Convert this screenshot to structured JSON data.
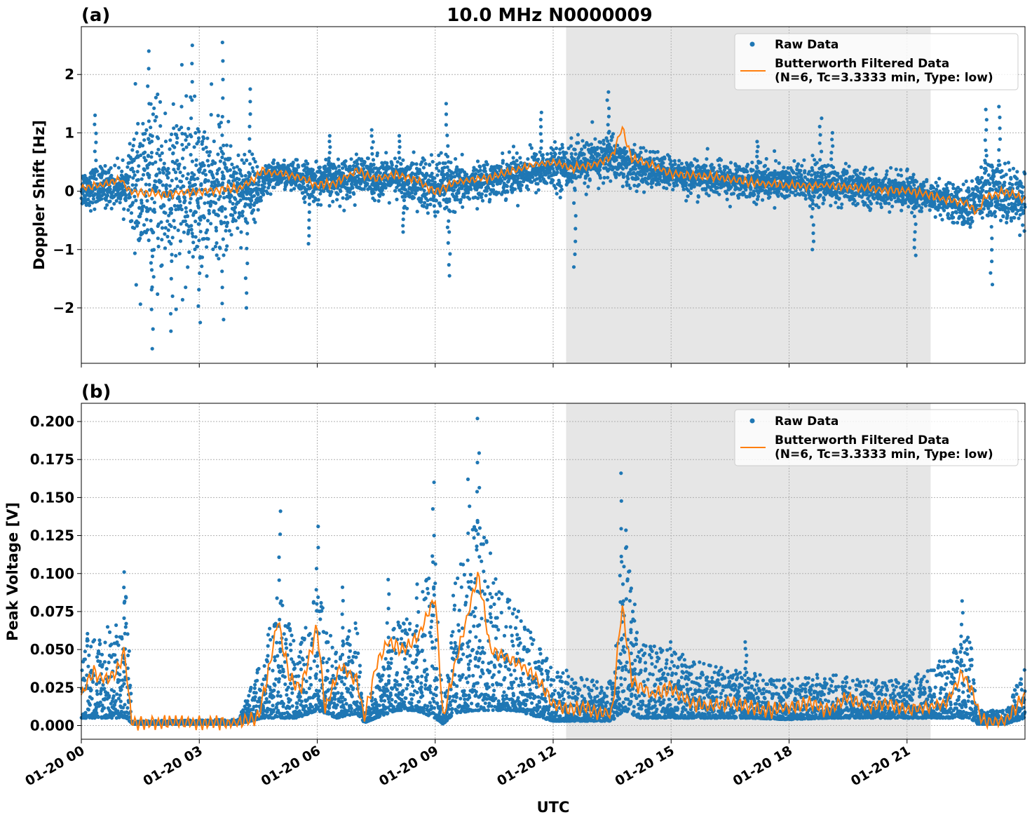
{
  "figure": {
    "title": "10.0 MHz N0000009",
    "xlabel": "UTC",
    "shade_x_range": [
      12.33,
      21.6
    ]
  },
  "colors": {
    "raw": "#1f77b4",
    "filtered": "#ff7f0e",
    "shade": "#e6e6e6",
    "grid": "#b0b0b0"
  },
  "chart_data": [
    {
      "type": "scatter",
      "panel_label": "(a)",
      "ylabel": "Doppler Shift [Hz]",
      "xlim": [
        0,
        24
      ],
      "ylim": [
        -2.95,
        2.82
      ],
      "x_ticks": [
        0,
        3,
        6,
        9,
        12,
        15,
        18,
        21
      ],
      "y_ticks": [
        -2,
        -1,
        0,
        1,
        2
      ],
      "y_tick_labels": [
        "−2",
        "−1",
        "0",
        "1",
        "2"
      ],
      "grid": true,
      "legend_position": "top-right",
      "legend": [
        {
          "name": "Raw Data",
          "marker": "dot"
        },
        {
          "name": "Butterworth Filtered Data\n(N=6, Tc=3.3333 min, Type: low)",
          "marker": "line"
        }
      ],
      "series": [
        {
          "name": "Raw Data",
          "envelope_x": [
            0,
            1.2,
            1.3,
            2.5,
            3.5,
            4.5,
            5,
            6,
            7,
            8,
            9,
            9.5,
            10,
            11,
            12,
            12.5,
            13,
            13.5,
            14,
            15,
            16,
            18,
            19,
            20,
            21,
            22,
            22.5,
            23,
            24
          ],
          "envelope_center": [
            0.05,
            0.1,
            0.0,
            0.0,
            0.0,
            0.05,
            0.3,
            0.15,
            0.25,
            0.2,
            0.05,
            0.05,
            0.15,
            0.3,
            0.4,
            0.45,
            0.5,
            0.6,
            0.4,
            0.3,
            0.2,
            0.15,
            0.1,
            0.05,
            0.0,
            -0.15,
            -0.3,
            0.0,
            -0.1
          ],
          "envelope_halfwidth": [
            0.3,
            0.3,
            1.2,
            1.3,
            1.0,
            0.35,
            0.2,
            0.3,
            0.3,
            0.3,
            0.5,
            0.35,
            0.25,
            0.3,
            0.3,
            0.35,
            0.35,
            0.35,
            0.3,
            0.25,
            0.25,
            0.3,
            0.3,
            0.25,
            0.25,
            0.25,
            0.3,
            0.5,
            0.4
          ],
          "peaks": [
            [
              0.35,
              1.3
            ],
            [
              1.7,
              2.4
            ],
            [
              2.8,
              2.5
            ],
            [
              3.6,
              2.55
            ],
            [
              1.8,
              -2.7
            ],
            [
              2.3,
              -2.4
            ],
            [
              3.0,
              -2.25
            ],
            [
              3.6,
              -2.2
            ],
            [
              4.3,
              1.75
            ],
            [
              4.2,
              -2.0
            ],
            [
              5.8,
              -0.9
            ],
            [
              6.3,
              0.95
            ],
            [
              7.4,
              1.05
            ],
            [
              8.1,
              0.95
            ],
            [
              8.2,
              -0.7
            ],
            [
              9.3,
              1.5
            ],
            [
              9.35,
              -1.45
            ],
            [
              11.7,
              1.35
            ],
            [
              12.55,
              -1.3
            ],
            [
              13.4,
              1.7
            ],
            [
              17.2,
              0.85
            ],
            [
              18.8,
              1.25
            ],
            [
              19.1,
              1.0
            ],
            [
              18.6,
              -1.0
            ],
            [
              21.2,
              -1.1
            ],
            [
              23.35,
              1.45
            ],
            [
              23.15,
              -1.6
            ],
            [
              23.0,
              1.4
            ]
          ]
        },
        {
          "name": "Butterworth Filtered Data (N=6, Tc=3.3333 min, Type: low)",
          "x": [
            0,
            0.5,
            1.0,
            1.25,
            2.0,
            3.0,
            4.0,
            4.4,
            4.6,
            5.5,
            6.0,
            6.5,
            7.0,
            7.5,
            8.0,
            8.5,
            9.0,
            9.5,
            10.0,
            10.5,
            11.0,
            11.5,
            12.0,
            12.5,
            13.0,
            13.5,
            13.75,
            14.0,
            14.5,
            15.0,
            16.0,
            17.0,
            18.0,
            19.0,
            20.0,
            21.0,
            21.5,
            22.0,
            22.5,
            22.8,
            23.0,
            23.5,
            24.0
          ],
          "y": [
            0.05,
            0.1,
            0.2,
            0.0,
            -0.05,
            0.0,
            0.05,
            0.2,
            0.35,
            0.25,
            0.1,
            0.15,
            0.35,
            0.2,
            0.3,
            0.2,
            0.0,
            0.15,
            0.2,
            0.25,
            0.35,
            0.45,
            0.5,
            0.4,
            0.45,
            0.6,
            1.1,
            0.55,
            0.45,
            0.3,
            0.25,
            0.15,
            0.1,
            0.1,
            0.05,
            0.0,
            -0.05,
            -0.15,
            -0.2,
            -0.35,
            -0.1,
            0.0,
            -0.15
          ]
        }
      ]
    },
    {
      "type": "scatter",
      "panel_label": "(b)",
      "ylabel": "Peak Voltage [V]",
      "xlim": [
        0,
        24
      ],
      "ylim": [
        -0.009,
        0.212
      ],
      "x_ticks": [
        0,
        3,
        6,
        9,
        12,
        15,
        18,
        21
      ],
      "x_tick_labels": [
        "01-20 00",
        "01-20 03",
        "01-20 06",
        "01-20 09",
        "01-20 12",
        "01-20 15",
        "01-20 18",
        "01-20 21"
      ],
      "y_ticks": [
        0.0,
        0.025,
        0.05,
        0.075,
        0.1,
        0.125,
        0.15,
        0.175,
        0.2
      ],
      "y_tick_labels": [
        "0.000",
        "0.025",
        "0.050",
        "0.075",
        "0.100",
        "0.125",
        "0.150",
        "0.175",
        "0.200"
      ],
      "grid": true,
      "legend_position": "top-right",
      "legend": [
        {
          "name": "Raw Data",
          "marker": "dot"
        },
        {
          "name": "Butterworth Filtered Data\n(N=6, Tc=3.3333 min, Type: low)",
          "marker": "line"
        }
      ],
      "series": [
        {
          "name": "Raw Data",
          "envelope_x": [
            0,
            0.5,
            1.0,
            1.15,
            1.3,
            4.0,
            4.6,
            5.0,
            5.5,
            6.0,
            6.5,
            7.0,
            7.2,
            8.0,
            8.5,
            9.0,
            9.2,
            9.5,
            10.0,
            11.0,
            12.0,
            12.5,
            13.0,
            13.5,
            13.8,
            14.2,
            15.0,
            16.0,
            17.0,
            18.0,
            19.0,
            20.0,
            21.0,
            22.0,
            22.6,
            22.8,
            23.5,
            24.0
          ],
          "envelope_low": [
            0.005,
            0.005,
            0.005,
            0.005,
            0.001,
            0.001,
            0.005,
            0.005,
            0.005,
            0.01,
            0.005,
            0.008,
            0.002,
            0.01,
            0.01,
            0.005,
            0.001,
            0.008,
            0.01,
            0.01,
            0.003,
            0.003,
            0.003,
            0.003,
            0.01,
            0.005,
            0.005,
            0.005,
            0.005,
            0.004,
            0.005,
            0.005,
            0.005,
            0.005,
            0.005,
            0.001,
            0.001,
            0.005
          ],
          "envelope_high": [
            0.06,
            0.065,
            0.07,
            0.09,
            0.003,
            0.004,
            0.045,
            0.09,
            0.05,
            0.09,
            0.05,
            0.07,
            0.008,
            0.07,
            0.07,
            0.12,
            0.005,
            0.1,
            0.14,
            0.08,
            0.04,
            0.035,
            0.03,
            0.03,
            0.14,
            0.055,
            0.05,
            0.04,
            0.035,
            0.03,
            0.035,
            0.03,
            0.03,
            0.045,
            0.06,
            0.01,
            0.01,
            0.04
          ],
          "peaks": [
            [
              1.1,
              0.101
            ],
            [
              5.05,
              0.141
            ],
            [
              6.0,
              0.131
            ],
            [
              6.65,
              0.091
            ],
            [
              7.8,
              0.096
            ],
            [
              8.55,
              0.093
            ],
            [
              8.95,
              0.16
            ],
            [
              9.85,
              0.162
            ],
            [
              10.1,
              0.202
            ],
            [
              10.05,
              0.173
            ],
            [
              13.75,
              0.166
            ],
            [
              14.0,
              0.075
            ],
            [
              22.4,
              0.082
            ],
            [
              15.0,
              0.055
            ],
            [
              16.9,
              0.055
            ]
          ]
        },
        {
          "name": "Butterworth Filtered Data (N=6, Tc=3.3333 min, Type: low)",
          "x": [
            0,
            0.3,
            0.6,
            0.9,
            1.1,
            1.2,
            1.3,
            4.0,
            4.5,
            4.8,
            5.0,
            5.3,
            5.6,
            6.0,
            6.2,
            6.6,
            7.0,
            7.2,
            7.5,
            7.8,
            8.2,
            8.6,
            9.0,
            9.2,
            9.5,
            9.8,
            10.1,
            10.4,
            10.8,
            11.2,
            11.6,
            12.0,
            12.4,
            12.8,
            13.2,
            13.5,
            13.75,
            14.0,
            14.5,
            15.0,
            15.5,
            16.0,
            16.5,
            17.0,
            17.5,
            18.0,
            18.5,
            19.0,
            19.5,
            20.0,
            20.5,
            21.0,
            21.5,
            22.0,
            22.4,
            22.7,
            22.9,
            23.5,
            24.0
          ],
          "y": [
            0.02,
            0.035,
            0.03,
            0.035,
            0.05,
            0.02,
            0.002,
            0.002,
            0.005,
            0.04,
            0.07,
            0.03,
            0.025,
            0.065,
            0.01,
            0.04,
            0.03,
            0.005,
            0.04,
            0.055,
            0.05,
            0.06,
            0.085,
            0.003,
            0.04,
            0.07,
            0.1,
            0.05,
            0.045,
            0.04,
            0.03,
            0.015,
            0.01,
            0.012,
            0.008,
            0.008,
            0.08,
            0.03,
            0.02,
            0.025,
            0.015,
            0.012,
            0.015,
            0.012,
            0.01,
            0.012,
            0.015,
            0.01,
            0.018,
            0.012,
            0.015,
            0.01,
            0.012,
            0.015,
            0.035,
            0.02,
            0.003,
            0.003,
            0.02
          ]
        }
      ]
    }
  ]
}
